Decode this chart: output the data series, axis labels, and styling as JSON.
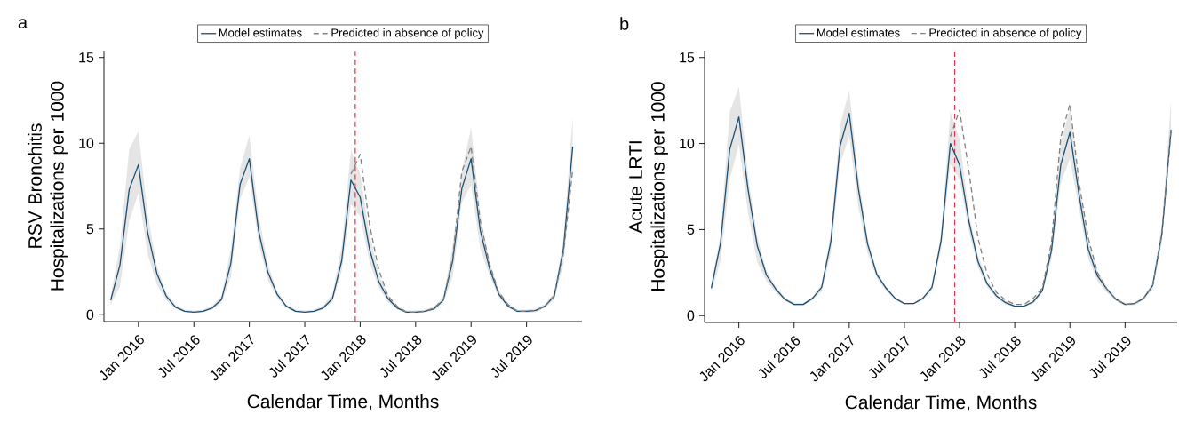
{
  "chart_data": [
    {
      "type": "line",
      "title": "a",
      "xlabel": "Calendar Time, Months",
      "ylabel": "RSV Bronchitis Hospitalizations per 1000",
      "x": [
        "2015-10",
        "2015-11",
        "2015-12",
        "2016-01",
        "2016-02",
        "2016-03",
        "2016-04",
        "2016-05",
        "2016-06",
        "2016-07",
        "2016-08",
        "2016-09",
        "2016-10",
        "2016-11",
        "2016-12",
        "2017-01",
        "2017-02",
        "2017-03",
        "2017-04",
        "2017-05",
        "2017-06",
        "2017-07",
        "2017-08",
        "2017-09",
        "2017-10",
        "2017-11",
        "2017-12",
        "2018-01",
        "2018-02",
        "2018-03",
        "2018-04",
        "2018-05",
        "2018-06",
        "2018-07",
        "2018-08",
        "2018-09",
        "2018-10",
        "2018-11",
        "2018-12",
        "2019-01",
        "2019-02",
        "2019-03",
        "2019-04",
        "2019-05",
        "2019-06",
        "2019-07",
        "2019-08",
        "2019-09",
        "2019-10",
        "2019-11",
        "2019-12"
      ],
      "series": [
        {
          "name": "Model estimates",
          "color": "#1a4e72",
          "line_style": "solid",
          "values": [
            0.85,
            2.9,
            7.3,
            8.75,
            4.8,
            2.4,
            1.1,
            0.45,
            0.2,
            0.15,
            0.2,
            0.4,
            0.9,
            3.0,
            7.6,
            9.1,
            4.9,
            2.5,
            1.2,
            0.5,
            0.2,
            0.15,
            0.2,
            0.4,
            0.95,
            3.15,
            7.85,
            6.85,
            3.85,
            1.95,
            0.95,
            0.4,
            0.15,
            0.15,
            0.2,
            0.35,
            0.85,
            3.1,
            7.35,
            9.1,
            4.9,
            2.7,
            1.2,
            0.5,
            0.2,
            0.2,
            0.25,
            0.5,
            1.1,
            3.85,
            9.8
          ],
          "upper": [
            1.1,
            4.0,
            9.65,
            10.7,
            5.85,
            2.85,
            1.3,
            0.6,
            0.3,
            0.25,
            0.3,
            0.55,
            1.1,
            3.85,
            8.55,
            10.45,
            5.85,
            2.95,
            1.4,
            0.6,
            0.3,
            0.25,
            0.3,
            0.55,
            1.2,
            4.0,
            9.6,
            8.2,
            4.75,
            2.4,
            1.15,
            0.5,
            0.25,
            0.25,
            0.3,
            0.5,
            1.0,
            4.0,
            8.35,
            10.9,
            5.85,
            3.1,
            1.45,
            0.65,
            0.3,
            0.3,
            0.35,
            0.65,
            1.3,
            4.4,
            11.55
          ],
          "lower": [
            0.6,
            1.65,
            5.45,
            7.1,
            3.55,
            1.75,
            0.85,
            0.35,
            0.15,
            0.1,
            0.15,
            0.3,
            0.7,
            2.2,
            6.75,
            8.0,
            4.2,
            2.05,
            1.0,
            0.4,
            0.15,
            0.1,
            0.15,
            0.3,
            0.75,
            2.55,
            6.45,
            5.75,
            3.1,
            1.6,
            0.75,
            0.3,
            0.1,
            0.1,
            0.15,
            0.25,
            0.7,
            2.2,
            6.55,
            7.55,
            3.85,
            2.3,
            1.0,
            0.4,
            0.15,
            0.1,
            0.15,
            0.4,
            0.9,
            2.95,
            8.35
          ]
        },
        {
          "name": "Predicted in absence of policy",
          "color": "#808080",
          "line_style": "dashed",
          "x": [
            "2017-12",
            "2018-01",
            "2018-02",
            "2018-03",
            "2018-04",
            "2018-05",
            "2018-06",
            "2018-07",
            "2018-08",
            "2018-09",
            "2018-10",
            "2018-11",
            "2018-12",
            "2019-01",
            "2019-02",
            "2019-03",
            "2019-04",
            "2019-05",
            "2019-06",
            "2019-07",
            "2019-08",
            "2019-09",
            "2019-10",
            "2019-11",
            "2019-12"
          ],
          "values": [
            8.2,
            9.35,
            5.3,
            2.65,
            1.1,
            0.5,
            0.15,
            0.15,
            0.2,
            0.4,
            0.9,
            3.3,
            8.35,
            9.8,
            5.45,
            2.95,
            1.3,
            0.6,
            0.2,
            0.2,
            0.25,
            0.5,
            1.1,
            3.6,
            8.45
          ]
        }
      ],
      "xlim": [
        "2015-09-09",
        "2020-01-01"
      ],
      "xticks": [
        {
          "value": "2016-01",
          "label": "Jan 2016"
        },
        {
          "value": "2016-07",
          "label": "Jul 2016"
        },
        {
          "value": "2017-01",
          "label": "Jan 2017"
        },
        {
          "value": "2017-07",
          "label": "Jul 2017"
        },
        {
          "value": "2018-01",
          "label": "Jan 2018"
        },
        {
          "value": "2018-07",
          "label": "Jul 2018"
        },
        {
          "value": "2019-01",
          "label": "Jan 2019"
        },
        {
          "value": "2019-07",
          "label": "Jul 2019"
        }
      ],
      "ylim": [
        -0.4,
        15.4
      ],
      "yticks": [
        0,
        5,
        10,
        15
      ],
      "ref_lines": [
        {
          "axis": "x",
          "value": "2017-12-15",
          "color": "#e8334f",
          "line_style": "dashed"
        }
      ],
      "legend": "top",
      "grid": false
    },
    {
      "type": "line",
      "title": "b",
      "xlabel": "Calendar Time, Months",
      "ylabel": "Acute LRTI Hospitalizations per 1000",
      "x": [
        "2015-10",
        "2015-11",
        "2015-12",
        "2016-01",
        "2016-02",
        "2016-03",
        "2016-04",
        "2016-05",
        "2016-06",
        "2016-07",
        "2016-08",
        "2016-09",
        "2016-10",
        "2016-11",
        "2016-12",
        "2017-01",
        "2017-02",
        "2017-03",
        "2017-04",
        "2017-05",
        "2017-06",
        "2017-07",
        "2017-08",
        "2017-09",
        "2017-10",
        "2017-11",
        "2017-12",
        "2018-01",
        "2018-02",
        "2018-03",
        "2018-04",
        "2018-05",
        "2018-06",
        "2018-07",
        "2018-08",
        "2018-09",
        "2018-10",
        "2018-11",
        "2018-12",
        "2019-01",
        "2019-02",
        "2019-03",
        "2019-04",
        "2019-05",
        "2019-06",
        "2019-07",
        "2019-08",
        "2019-09",
        "2019-10",
        "2019-11",
        "2019-12"
      ],
      "series": [
        {
          "name": "Model estimates",
          "color": "#1a4e72",
          "line_style": "solid",
          "values": [
            1.6,
            4.2,
            9.65,
            11.55,
            7.3,
            4.05,
            2.35,
            1.55,
            0.95,
            0.65,
            0.65,
            1.0,
            1.65,
            4.3,
            9.85,
            11.75,
            7.35,
            4.15,
            2.4,
            1.6,
            1.0,
            0.7,
            0.7,
            1.0,
            1.65,
            4.4,
            10.0,
            8.75,
            5.5,
            3.15,
            1.85,
            1.15,
            0.75,
            0.55,
            0.55,
            0.8,
            1.45,
            3.8,
            8.75,
            10.65,
            7.0,
            3.85,
            2.3,
            1.55,
            0.95,
            0.65,
            0.7,
            1.0,
            1.75,
            4.75,
            10.8
          ],
          "upper": [
            1.9,
            4.7,
            11.85,
            13.3,
            8.1,
            4.6,
            2.6,
            1.7,
            1.05,
            0.75,
            0.75,
            1.1,
            1.85,
            4.8,
            11.05,
            13.1,
            8.1,
            4.5,
            2.6,
            1.7,
            1.1,
            0.75,
            0.75,
            1.1,
            1.8,
            4.8,
            11.85,
            10.25,
            6.0,
            3.5,
            2.05,
            1.25,
            0.85,
            0.6,
            0.6,
            0.9,
            1.6,
            4.3,
            10.05,
            12.05,
            7.8,
            4.4,
            2.6,
            1.7,
            1.05,
            0.75,
            0.75,
            1.1,
            1.95,
            5.3,
            12.5
          ],
          "lower": [
            1.3,
            3.2,
            7.9,
            9.95,
            5.95,
            3.1,
            2.0,
            1.35,
            0.85,
            0.6,
            0.6,
            0.9,
            1.4,
            3.6,
            8.8,
            10.4,
            6.3,
            3.6,
            2.15,
            1.45,
            0.9,
            0.65,
            0.65,
            0.9,
            1.45,
            3.9,
            8.8,
            7.9,
            4.9,
            2.8,
            1.65,
            1.0,
            0.65,
            0.5,
            0.5,
            0.7,
            1.3,
            3.3,
            7.7,
            9.1,
            6.2,
            3.3,
            2.0,
            1.35,
            0.85,
            0.6,
            0.6,
            0.9,
            1.55,
            4.2,
            10.2
          ]
        },
        {
          "name": "Predicted in absence of policy",
          "color": "#808080",
          "line_style": "dashed",
          "x": [
            "2017-12",
            "2018-01",
            "2018-02",
            "2018-03",
            "2018-04",
            "2018-05",
            "2018-06",
            "2018-07",
            "2018-08",
            "2018-09",
            "2018-10",
            "2018-11",
            "2018-12",
            "2019-01",
            "2019-02",
            "2019-03",
            "2019-04",
            "2019-05",
            "2019-06",
            "2019-07",
            "2019-08",
            "2019-09",
            "2019-10",
            "2019-11",
            "2019-12"
          ],
          "values": [
            10.4,
            11.95,
            8.45,
            4.5,
            2.4,
            1.35,
            0.9,
            0.65,
            0.65,
            1.0,
            1.6,
            4.3,
            10.35,
            12.3,
            7.7,
            4.5,
            2.5,
            1.55,
            0.95,
            0.65,
            0.7,
            1.0,
            1.75,
            4.7,
            10.75
          ]
        }
      ],
      "xlim": [
        "2015-09-09",
        "2019-12-21"
      ],
      "xticks": [
        {
          "value": "2016-01",
          "label": "Jan 2016"
        },
        {
          "value": "2016-07",
          "label": "Jul 2016"
        },
        {
          "value": "2017-01",
          "label": "Jan 2017"
        },
        {
          "value": "2017-07",
          "label": "Jul 2017"
        },
        {
          "value": "2018-01",
          "label": "Jan 2018"
        },
        {
          "value": "2018-07",
          "label": "Jul 2018"
        },
        {
          "value": "2019-01",
          "label": "Jan 2019"
        },
        {
          "value": "2019-07",
          "label": "Jul 2019"
        }
      ],
      "ylim": [
        -0.4,
        15.4
      ],
      "yticks": [
        0,
        5,
        10,
        15
      ],
      "ref_lines": [
        {
          "axis": "x",
          "value": "2017-12-15",
          "color": "#e8334f",
          "line_style": "dashed"
        }
      ],
      "legend": "top",
      "grid": false
    }
  ]
}
